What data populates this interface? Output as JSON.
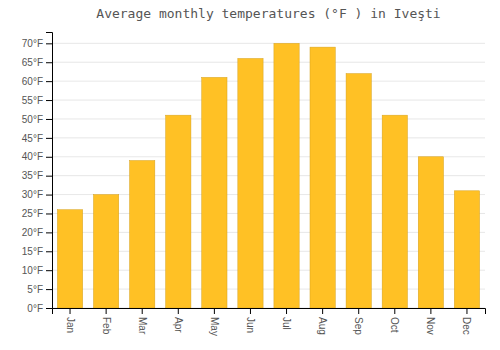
{
  "chart_data": {
    "type": "bar",
    "title": "Average monthly temperatures (°F ) in Iveşti",
    "categories": [
      "Jan",
      "Feb",
      "Mar",
      "Apr",
      "May",
      "Jun",
      "Jul",
      "Aug",
      "Sep",
      "Oct",
      "Nov",
      "Dec"
    ],
    "values": [
      26,
      30,
      39,
      51,
      61,
      66,
      70,
      69,
      62,
      51,
      40,
      31
    ],
    "color": "#FFC125",
    "ylim": [
      0,
      73
    ],
    "yticks": [
      {
        "value": 0,
        "label": "0°F"
      },
      {
        "value": 5,
        "label": "5°F"
      },
      {
        "value": 10,
        "label": "10°F"
      },
      {
        "value": 15,
        "label": "15°F"
      },
      {
        "value": 20,
        "label": "20°F"
      },
      {
        "value": 25,
        "label": "25°F"
      },
      {
        "value": 30,
        "label": "30°F"
      },
      {
        "value": 35,
        "label": "35°F"
      },
      {
        "value": 40,
        "label": "40°F"
      },
      {
        "value": 45,
        "label": "45°F"
      },
      {
        "value": 50,
        "label": "50°F"
      },
      {
        "value": 55,
        "label": "55°F"
      },
      {
        "value": 60,
        "label": "60°F"
      },
      {
        "value": 65,
        "label": "65°F"
      },
      {
        "value": 70,
        "label": "70°F"
      }
    ],
    "grid": true
  }
}
